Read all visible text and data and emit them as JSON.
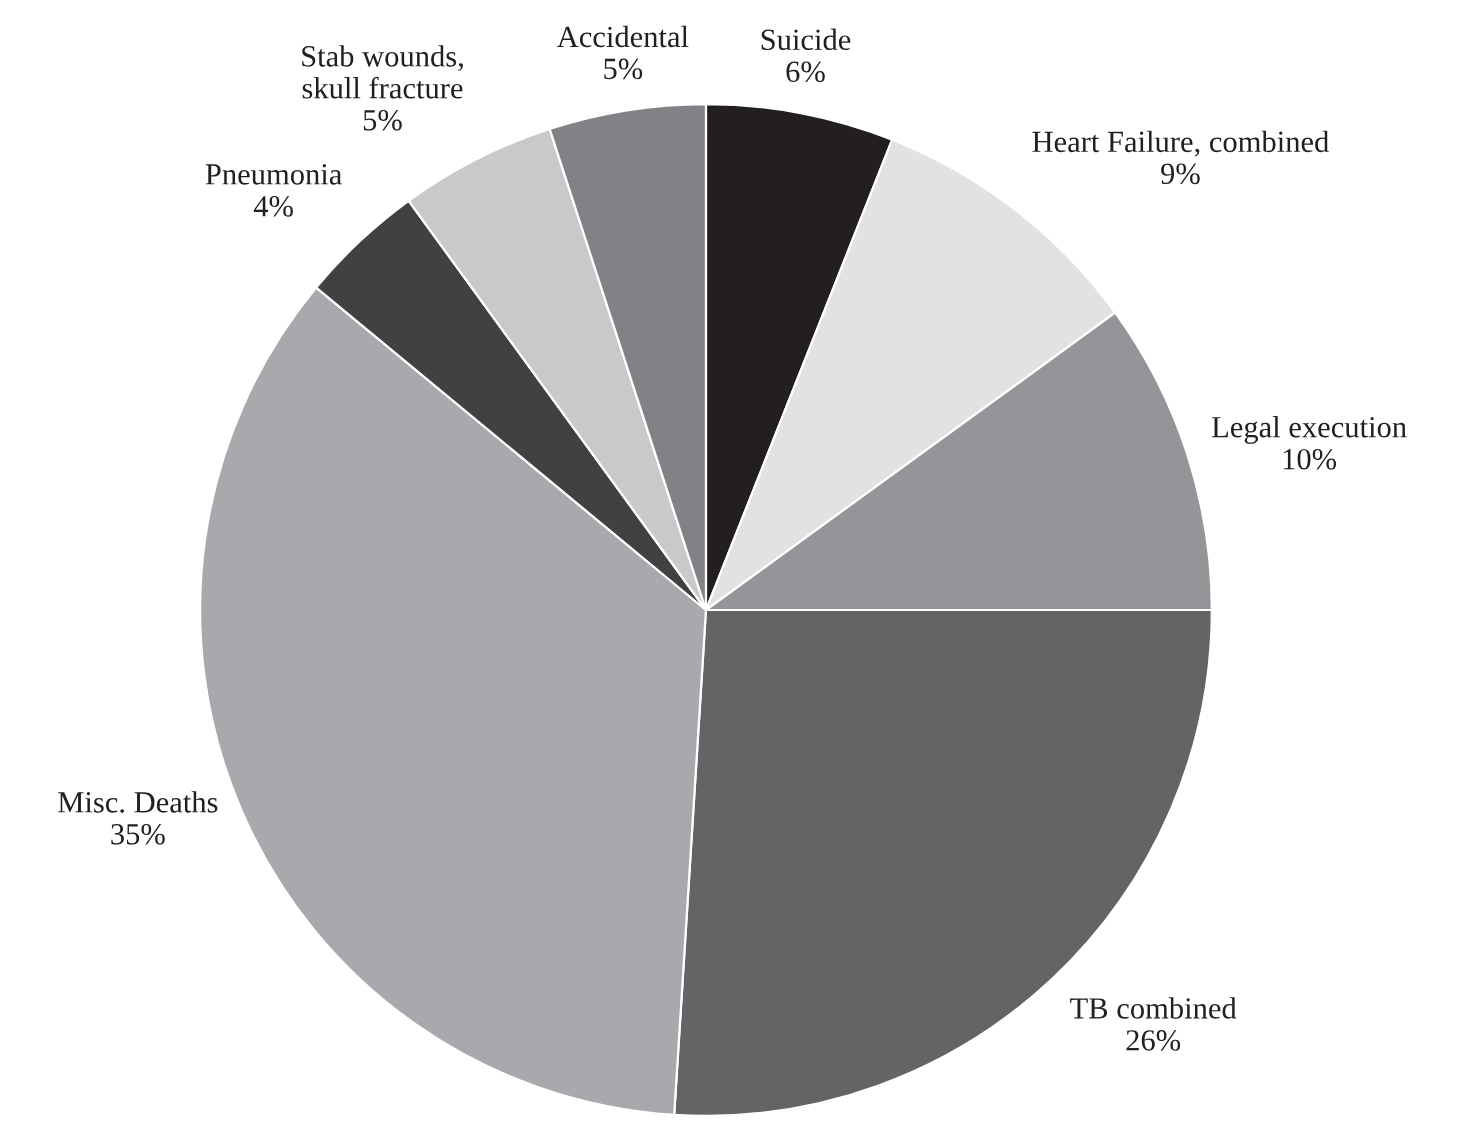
{
  "chart_data": {
    "type": "pie",
    "categories": [
      "Suicide",
      "Heart Failure, combined",
      "Legal execution",
      "TB combined",
      "Misc. Deaths",
      "Pneumonia",
      "Stab wounds,\nskull fracture",
      "Accidental"
    ],
    "values": [
      6,
      9,
      10,
      26,
      35,
      4,
      5,
      5
    ],
    "value_labels": [
      "6%",
      "9%",
      "10%",
      "26%",
      "35%",
      "4%",
      "5%",
      "5%"
    ],
    "colors": [
      "#231f20",
      "#e2e2e3",
      "#939598",
      "#636466",
      "#a7a9ac",
      "#414042",
      "#c8c9cb",
      "#808285"
    ]
  }
}
